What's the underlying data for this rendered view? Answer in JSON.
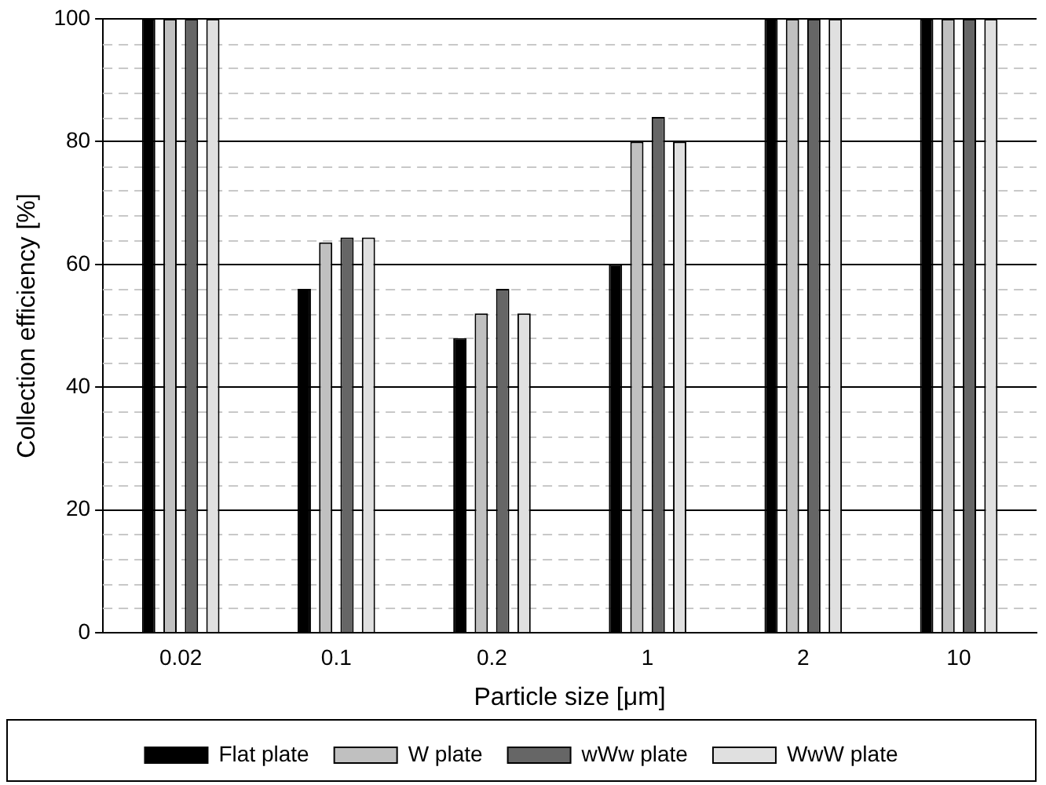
{
  "chart_data": {
    "type": "bar",
    "xlabel": "Particle size [μm]",
    "ylabel": "Collection efficiency [%]",
    "categories": [
      "0.02",
      "0.1",
      "0.2",
      "1",
      "2",
      "10"
    ],
    "series": [
      {
        "name": "Flat plate",
        "color": "#000000",
        "values": [
          100,
          56,
          48,
          60,
          100,
          100
        ]
      },
      {
        "name": "W plate",
        "color": "#c0c0c0",
        "values": [
          100,
          63.6,
          52,
          80,
          100,
          100
        ]
      },
      {
        "name": "wWw plate",
        "color": "#666666",
        "values": [
          100,
          64.4,
          56,
          84,
          100,
          100
        ]
      },
      {
        "name": "WwW plate",
        "color": "#e0e0e0",
        "values": [
          100,
          64.4,
          52,
          80,
          100,
          100
        ]
      }
    ],
    "ylim": [
      0,
      100
    ],
    "yticks": [
      0,
      20,
      40,
      60,
      80,
      100
    ],
    "grid": "y",
    "legend": "bottom"
  }
}
